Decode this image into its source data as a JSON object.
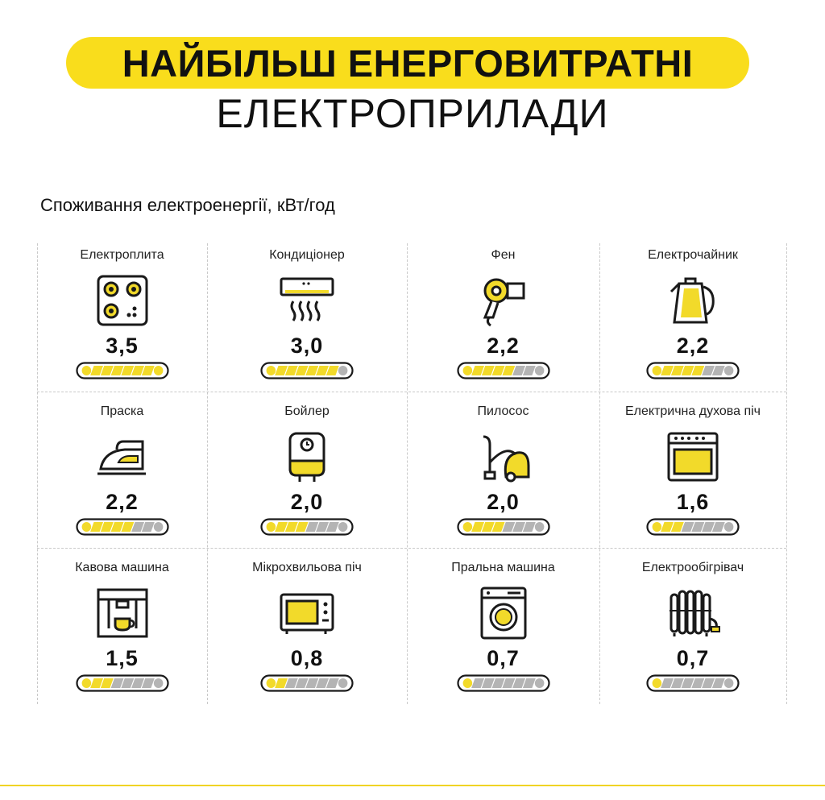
{
  "header": {
    "title": "НАЙБІЛЬШ ЕНЕРГОВИТРАТНІ",
    "subtitle": "ЕЛЕКТРОПРИЛАДИ",
    "caption": "Споживання електроенергії, кВт/год"
  },
  "colors": {
    "accent": "#f9dd1c",
    "bar_fill": "#f2da2a",
    "bar_empty": "#b4b4b4",
    "outline": "#1a1a1a"
  },
  "chart_data": {
    "type": "bar",
    "unit": "кВт/год",
    "items": [
      {
        "name": "Електроплита",
        "value": "3,5",
        "numeric": 3.5,
        "icon": "electric-stove-icon"
      },
      {
        "name": "Кондиціонер",
        "value": "3,0",
        "numeric": 3.0,
        "icon": "air-conditioner-icon"
      },
      {
        "name": "Фен",
        "value": "2,2",
        "numeric": 2.2,
        "icon": "hair-dryer-icon"
      },
      {
        "name": "Електрочайник",
        "value": "2,2",
        "numeric": 2.2,
        "icon": "electric-kettle-icon"
      },
      {
        "name": "Праска",
        "value": "2,2",
        "numeric": 2.2,
        "icon": "iron-icon"
      },
      {
        "name": "Бойлер",
        "value": "2,0",
        "numeric": 2.0,
        "icon": "boiler-icon"
      },
      {
        "name": "Пилосос",
        "value": "2,0",
        "numeric": 2.0,
        "icon": "vacuum-cleaner-icon"
      },
      {
        "name": "Електрична духова піч",
        "value": "1,6",
        "numeric": 1.6,
        "icon": "electric-oven-icon"
      },
      {
        "name": "Кавова машина",
        "value": "1,5",
        "numeric": 1.5,
        "icon": "coffee-machine-icon"
      },
      {
        "name": "Мікрохвильова піч",
        "value": "0,8",
        "numeric": 0.8,
        "icon": "microwave-icon"
      },
      {
        "name": "Пральна машина",
        "value": "0,7",
        "numeric": 0.7,
        "icon": "washing-machine-icon"
      },
      {
        "name": "Електрообігрівач",
        "value": "0,7",
        "numeric": 0.7,
        "icon": "electric-heater-icon"
      }
    ],
    "bar_segments": 8,
    "bar_filled_segments": [
      8,
      7,
      5,
      5,
      5,
      4,
      4,
      3,
      3,
      2,
      1,
      1
    ]
  }
}
